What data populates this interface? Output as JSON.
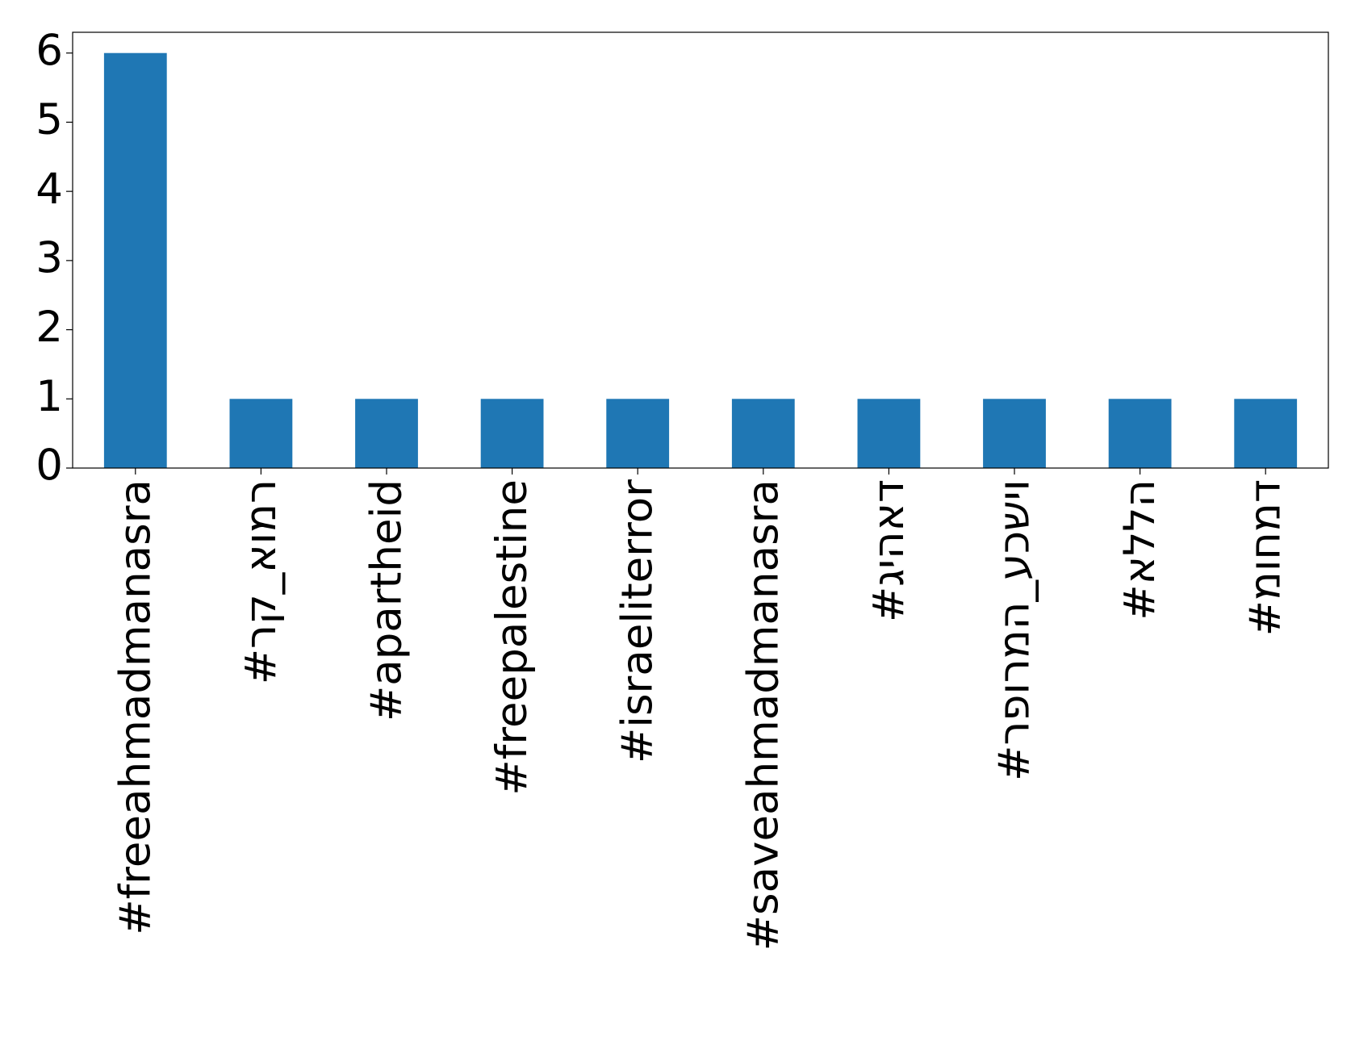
{
  "chart_data": {
    "type": "bar",
    "categories": [
      "#freeahmadmanasra",
      "#רק_אומר",
      "#apartheid",
      "#freepalestine",
      "#israeliterror",
      "#saveahmadmanasra",
      "#גיהאד",
      "#רפורמה_עכשיו",
      "#אללה",
      "#מוחמד"
    ],
    "values": [
      6,
      1,
      1,
      1,
      1,
      1,
      1,
      1,
      1,
      1
    ],
    "color": "#1f77b4",
    "ylim": [
      0,
      6.3
    ],
    "yticks": [
      0,
      1,
      2,
      3,
      4,
      5,
      6
    ],
    "grid": false
  }
}
